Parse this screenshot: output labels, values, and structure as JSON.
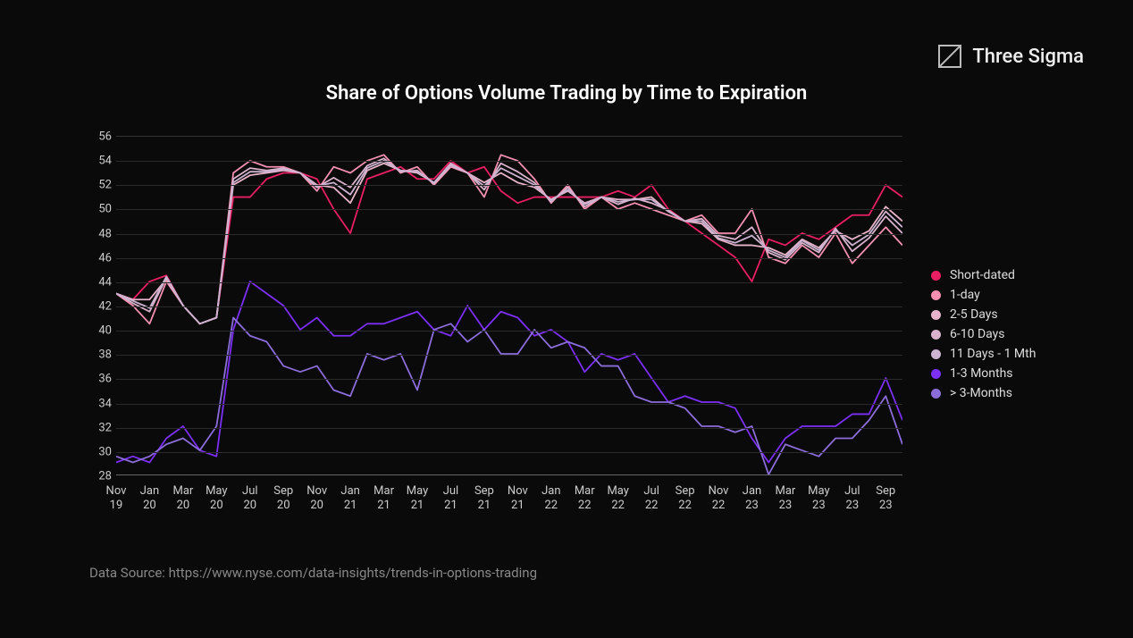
{
  "brand": {
    "name": "Three Sigma"
  },
  "chart": {
    "type": "line",
    "title": "Share of Options Volume Trading by Time to Expiration",
    "background_color": "#0a0a0a",
    "grid_color": "#2a2a2a",
    "text_color": "#cccccc",
    "title_color": "#ffffff",
    "title_fontsize": 22,
    "label_fontsize": 13,
    "line_width": 1.8,
    "ylim": [
      28,
      56
    ],
    "ytick_step": 2,
    "yticks": [
      28,
      30,
      32,
      34,
      36,
      38,
      40,
      42,
      44,
      46,
      48,
      50,
      52,
      54,
      56
    ],
    "xlabels": [
      "Nov\n19",
      "Jan\n20",
      "Mar\n20",
      "May\n20",
      "Jul\n20",
      "Sep\n20",
      "Nov\n20",
      "Jan\n21",
      "Mar\n21",
      "May\n21",
      "Jul\n21",
      "Sep\n21",
      "Nov\n21",
      "Jan\n22",
      "Mar\n22",
      "May\n22",
      "Jul\n22",
      "Sep\n22",
      "Nov\n22",
      "Jan\n23",
      "Mar\n23",
      "May\n23",
      "Jul\n23",
      "Sep\n23"
    ],
    "n_points": 48,
    "series": [
      {
        "name": "Short-dated",
        "color": "#e91e63",
        "values": [
          43,
          42.5,
          44,
          44.5,
          42,
          40.5,
          41,
          51,
          51,
          52.5,
          53,
          53,
          52.5,
          50,
          48,
          52.5,
          53,
          53.5,
          52.5,
          52.5,
          54,
          53,
          53.5,
          51.5,
          50.5,
          51,
          51,
          51,
          51,
          51,
          51.5,
          51,
          52,
          50,
          49,
          48,
          47,
          46,
          44,
          47.5,
          47,
          48,
          47.5,
          48.5,
          49.5,
          49.5,
          52,
          51
        ]
      },
      {
        "name": "1-day",
        "color": "#f48fb1",
        "values": [
          43,
          42,
          40.5,
          44,
          42,
          40.5,
          41,
          53,
          54,
          53.5,
          53.5,
          53,
          51.5,
          53.5,
          53,
          54,
          54.5,
          53,
          53.5,
          52,
          53.5,
          53,
          51,
          54.5,
          54,
          52.5,
          50.5,
          52,
          50,
          51,
          50,
          50.5,
          50,
          49.5,
          49,
          49.5,
          48,
          48,
          50,
          46,
          45.5,
          47,
          46,
          48,
          45.5,
          47,
          48.5,
          47
        ]
      },
      {
        "name": "2-5 Days",
        "color": "#e6b3c9",
        "values": [
          43,
          42.5,
          42.5,
          44.2,
          42,
          40.5,
          41,
          52,
          52.8,
          53,
          53.2,
          53,
          52,
          51.8,
          50.5,
          53.2,
          53.8,
          53.2,
          53,
          52.2,
          53.8,
          53,
          52.2,
          53,
          52.2,
          51.8,
          50.8,
          51.5,
          50.5,
          51,
          50.8,
          50.8,
          51,
          49.8,
          49,
          48.8,
          47.5,
          47,
          47,
          46.8,
          46.2,
          47.5,
          46.8,
          48.2,
          47.5,
          48.2,
          50.2,
          49
        ]
      },
      {
        "name": "6-10 Days",
        "color": "#d9b3cc",
        "values": [
          43,
          42.2,
          41.5,
          44.3,
          42,
          40.5,
          41,
          52.5,
          53.4,
          53.2,
          53.4,
          53,
          51.8,
          52.6,
          51.8,
          53.6,
          54.2,
          53.1,
          53.2,
          52.1,
          53.6,
          53,
          51.6,
          53.8,
          53.1,
          52.2,
          50.6,
          51.8,
          50.2,
          51,
          50.4,
          50.9,
          50.5,
          49.9,
          49,
          49.2,
          47.8,
          47.5,
          48.5,
          46.4,
          45.8,
          47.2,
          46.4,
          48.4,
          46.5,
          47.6,
          49.4,
          48
        ]
      },
      {
        "name": "11 Days - 1 Mth",
        "color": "#ccb3d1",
        "values": [
          43,
          42.4,
          41.8,
          44.4,
          42,
          40.5,
          41,
          52.2,
          53.1,
          53.1,
          53.3,
          53,
          51.9,
          52.2,
          51.2,
          53.4,
          54,
          53.2,
          53.1,
          52.2,
          53.7,
          53,
          51.9,
          53.4,
          52.7,
          52,
          50.7,
          51.6,
          50.4,
          51,
          50.6,
          50.8,
          50.8,
          49.8,
          49,
          49,
          47.6,
          47.2,
          47.8,
          46.6,
          46,
          47.4,
          46.6,
          48.3,
          47,
          47.9,
          49.8,
          48.5
        ]
      },
      {
        "name": "1-3 Months",
        "color": "#7b2ff7",
        "values": [
          29,
          29.5,
          29,
          31,
          32,
          30,
          29.5,
          40,
          44,
          43,
          42,
          40,
          41,
          39.5,
          39.5,
          40.5,
          40.5,
          41,
          41.5,
          40,
          39.5,
          42,
          40,
          41.5,
          41,
          39.5,
          40,
          39,
          36.5,
          38,
          37.5,
          38,
          36,
          34,
          34.5,
          34,
          34,
          33.5,
          31,
          29,
          31,
          32,
          32,
          32,
          33,
          33,
          36,
          32.5
        ]
      },
      {
        "name": "> 3-Months",
        "color": "#8b6dd9",
        "values": [
          29.5,
          29,
          29.5,
          30.5,
          31,
          30,
          32,
          41,
          39.5,
          39,
          37,
          36.5,
          37,
          35,
          34.5,
          38,
          37.5,
          38,
          35,
          40,
          40.5,
          39,
          40,
          38,
          38,
          40,
          38.5,
          39,
          38.5,
          37,
          37,
          34.5,
          34,
          34,
          33.5,
          32,
          32,
          31.5,
          32,
          28,
          30.5,
          30,
          29.5,
          31,
          31,
          32.5,
          34.5,
          30.5
        ]
      }
    ],
    "legend": {
      "position": "right",
      "items": [
        {
          "label": "Short-dated",
          "color": "#e91e63"
        },
        {
          "label": "1-day",
          "color": "#f48fb1"
        },
        {
          "label": "2-5 Days",
          "color": "#e6b3c9"
        },
        {
          "label": "6-10 Days",
          "color": "#d9b3cc"
        },
        {
          "label": "11 Days - 1 Mth",
          "color": "#ccb3d1"
        },
        {
          "label": "1-3 Months",
          "color": "#7b2ff7"
        },
        {
          "label": "> 3-Months",
          "color": "#8b6dd9"
        }
      ]
    }
  },
  "data_source": "Data Source: https://www.nyse.com/data-insights/trends-in-options-trading"
}
